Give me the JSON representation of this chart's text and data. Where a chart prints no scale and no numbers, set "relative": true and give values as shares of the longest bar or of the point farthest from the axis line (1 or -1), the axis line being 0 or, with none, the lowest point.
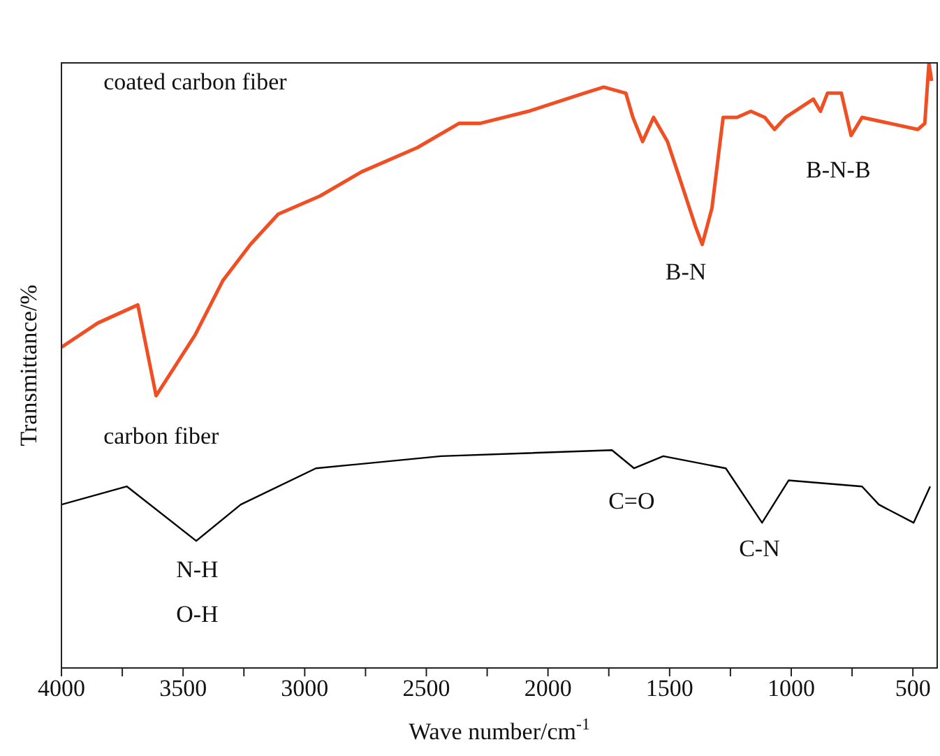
{
  "chart_data": {
    "type": "line",
    "relative": true,
    "xlabel": "Wave number/cm$^{-1}$",
    "ylabel": "Transmittance/%",
    "xlim": [
      4000,
      400
    ],
    "xticks": [
      4000,
      {
        "value": 3750,
        "label": null
      },
      3500,
      {
        "value": 3250,
        "label": null
      },
      3000,
      {
        "value": 2750,
        "label": null
      },
      2500,
      {
        "value": 2250,
        "label": null
      },
      2000,
      {
        "value": 1750,
        "label": null
      },
      1500,
      {
        "value": 1250,
        "label": null
      },
      1000,
      {
        "value": 750,
        "label": null
      },
      500
    ],
    "marker": "none",
    "line_style": "solid",
    "series": [
      {
        "color": "#f04e23",
        "x": [
          4000,
          3851,
          3686,
          3611,
          3451,
          3337,
          3223,
          3109,
          2937,
          2766,
          2537,
          2366,
          2280,
          2080,
          1851,
          1771,
          1680,
          1651,
          1611,
          1566,
          1509,
          1451,
          1394,
          1366,
          1326,
          1280,
          1223,
          1166,
          1109,
          1069,
          1023,
          909,
          880,
          851,
          794,
          754,
          709,
          594,
          480,
          451,
          434,
          423
        ],
        "values": [
          0.53,
          0.57,
          0.6,
          0.45,
          0.55,
          0.64,
          0.7,
          0.75,
          0.78,
          0.82,
          0.86,
          0.9,
          0.9,
          0.92,
          0.95,
          0.96,
          0.95,
          0.91,
          0.87,
          0.91,
          0.87,
          0.8,
          0.73,
          0.7,
          0.76,
          0.91,
          0.91,
          0.92,
          0.91,
          0.89,
          0.91,
          0.94,
          0.92,
          0.95,
          0.95,
          0.88,
          0.91,
          0.9,
          0.89,
          0.9,
          1.0,
          0.97
        ]
      },
      {
        "color": "#000000",
        "x": [
          4000,
          3731,
          3446,
          3263,
          2954,
          2440,
          1737,
          1646,
          1526,
          1269,
          1120,
          1011,
          709,
          640,
          497,
          429
        ],
        "values": [
          0.27,
          0.3,
          0.21,
          0.27,
          0.33,
          0.35,
          0.36,
          0.33,
          0.35,
          0.33,
          0.24,
          0.31,
          0.3,
          0.27,
          0.24,
          0.3
        ]
      }
    ],
    "annotations": [
      "coated carbon fiber",
      "carbon fiber",
      "B-N",
      "B-N-B",
      "C=O",
      "C-N",
      "N-H",
      "O-H"
    ]
  }
}
